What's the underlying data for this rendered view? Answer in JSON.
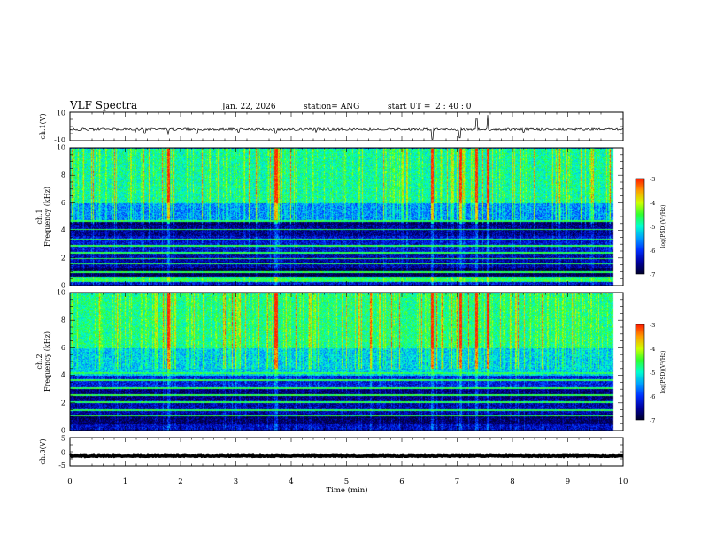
{
  "header": {
    "title": "VLF Spectra",
    "date": "Jan. 22, 2026",
    "station": "station= ANG",
    "start": "start UT =  2 : 40 : 0"
  },
  "colors": {
    "palette": [
      "#000030",
      "#0000a0",
      "#0030ff",
      "#00a0ff",
      "#00ffd0",
      "#30ff30",
      "#d0ff00",
      "#ffa000",
      "#ff2000",
      "#ffffff"
    ]
  },
  "chart_data": [
    {
      "type": "line",
      "name": "ch1-waveform",
      "ylabel": "ch.1(V)",
      "ylim": [
        -10,
        10
      ],
      "yticks": [
        "10",
        "-10"
      ],
      "xlim": [
        0,
        10
      ],
      "baseline": -2,
      "noise_amplitude": 0.8,
      "spikes": [
        {
          "t": 1.18,
          "v": -4
        },
        {
          "t": 1.35,
          "v": -5
        },
        {
          "t": 1.78,
          "v": -6
        },
        {
          "t": 2.3,
          "v": -5
        },
        {
          "t": 3.05,
          "v": -4
        },
        {
          "t": 3.72,
          "v": -5
        },
        {
          "t": 4.45,
          "v": -4
        },
        {
          "t": 6.55,
          "v": -9
        },
        {
          "t": 7.05,
          "v": -8
        },
        {
          "t": 7.35,
          "v": 6
        },
        {
          "t": 7.55,
          "v": 8
        },
        {
          "t": 8.2,
          "v": -4
        }
      ]
    },
    {
      "type": "heatmap",
      "name": "ch1-spectrogram",
      "ylabel": "ch.1\nFrequency (kHz)",
      "ylim": [
        0,
        10
      ],
      "yticks": [
        "0",
        "2",
        "4",
        "6",
        "8",
        "10"
      ],
      "xlim": [
        0,
        10
      ],
      "data_end_min": 9.83,
      "colorbar": {
        "label": "log(PSD)(V²/Hz)",
        "range": [
          -7,
          -3
        ],
        "ticks": [
          "-3",
          "-4",
          "-5",
          "-6",
          "-7"
        ]
      },
      "bands_khz": [
        {
          "lo": 0.0,
          "hi": 0.3,
          "level": -6.3
        },
        {
          "lo": 0.3,
          "hi": 0.7,
          "level": -4.8
        },
        {
          "lo": 0.7,
          "hi": 1.3,
          "level": -6.9
        },
        {
          "lo": 1.3,
          "hi": 2.5,
          "level": -6.5
        },
        {
          "lo": 2.5,
          "hi": 3.6,
          "level": -6.3
        },
        {
          "lo": 3.6,
          "hi": 4.4,
          "level": -6.6
        },
        {
          "lo": 4.4,
          "hi": 4.8,
          "level": -6.8
        },
        {
          "lo": 4.8,
          "hi": 6.0,
          "level": -5.6
        },
        {
          "lo": 6.0,
          "hi": 10.0,
          "level": -4.9
        }
      ],
      "lines_khz": [
        0.4,
        1.0,
        1.6,
        2.0,
        2.4,
        2.9,
        3.4,
        4.1,
        4.7
      ],
      "strong_events_min": [
        1.78,
        3.72,
        6.55,
        7.05,
        7.35,
        7.55
      ]
    },
    {
      "type": "heatmap",
      "name": "ch2-spectrogram",
      "ylabel": "ch.2\nFrequency (kHz)",
      "ylim": [
        0,
        10
      ],
      "yticks": [
        "0",
        "2",
        "4",
        "6",
        "8",
        "10"
      ],
      "xlim": [
        0,
        10
      ],
      "data_end_min": 9.83,
      "colorbar": {
        "label": "log(PSD)(V²/Hz)",
        "range": [
          -7,
          -3
        ],
        "ticks": [
          "-3",
          "-4",
          "-5",
          "-6",
          "-7"
        ]
      },
      "bands_khz": [
        {
          "lo": 0.0,
          "hi": 0.5,
          "level": -6.4
        },
        {
          "lo": 0.5,
          "hi": 1.2,
          "level": -6.8
        },
        {
          "lo": 1.2,
          "hi": 2.2,
          "level": -6.5
        },
        {
          "lo": 2.2,
          "hi": 3.2,
          "level": -6.7
        },
        {
          "lo": 3.2,
          "hi": 4.0,
          "level": -6.2
        },
        {
          "lo": 4.0,
          "hi": 6.0,
          "level": -5.3
        },
        {
          "lo": 6.0,
          "hi": 10.0,
          "level": -4.8
        }
      ],
      "lines_khz": [
        1.1,
        1.5,
        2.1,
        2.6,
        3.1,
        3.7,
        4.2
      ],
      "strong_events_min": [
        1.78,
        3.72,
        6.55,
        7.05,
        7.35,
        7.55
      ]
    },
    {
      "type": "line",
      "name": "ch3-waveform",
      "ylabel": "ch.3(V)",
      "ylim": [
        -5,
        5
      ],
      "yticks": [
        "5",
        "0",
        "-5"
      ],
      "xlim": [
        0,
        10
      ],
      "baseline": -1.5,
      "noise_amplitude": 0.15,
      "spikes": []
    }
  ],
  "xaxis": {
    "label": "Time (min)",
    "ticks": [
      "0",
      "1",
      "2",
      "3",
      "4",
      "5",
      "6",
      "7",
      "8",
      "9",
      "10"
    ]
  }
}
